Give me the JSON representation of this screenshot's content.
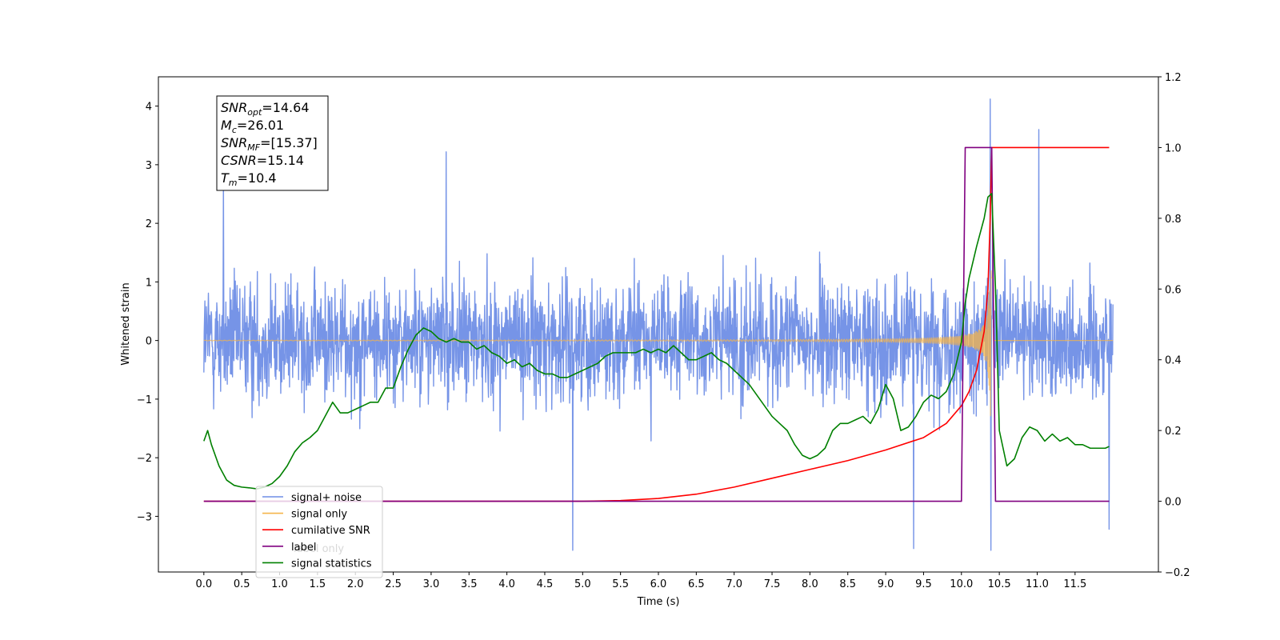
{
  "chart_data": {
    "type": "line",
    "xlabel": "Time (s)",
    "ylabel": "Whitened strain",
    "xlim": [
      -0.6,
      12.6
    ],
    "ylim_left": [
      -3.95,
      4.5
    ],
    "ylim_right": [
      -0.2,
      1.2
    ],
    "x_ticks": [
      0.0,
      0.5,
      1.0,
      1.5,
      2.0,
      2.5,
      3.0,
      3.5,
      4.0,
      4.5,
      5.0,
      5.5,
      6.0,
      6.5,
      7.0,
      7.5,
      8.0,
      8.5,
      9.0,
      9.5,
      10.0,
      10.5,
      11.0,
      11.5
    ],
    "x_tick_labels": [
      "0.0",
      "0.5",
      "1.0",
      "1.5",
      "2.0",
      "2.5",
      "3.0",
      "3.5",
      "4.0",
      "4.5",
      "5.0",
      "5.5",
      "6.0",
      "6.5",
      "7.0",
      "7.5",
      "8.0",
      "8.5",
      "9.0",
      "9.5",
      "10.0",
      "10.5",
      "11.0",
      "11.5"
    ],
    "y_left_ticks": [
      -3,
      -2,
      -1,
      0,
      1,
      2,
      3,
      4
    ],
    "y_left_tick_labels": [
      "−3",
      "−2",
      "−1",
      "0",
      "1",
      "2",
      "3",
      "4"
    ],
    "y_right_ticks": [
      -0.2,
      0.0,
      0.2,
      0.4,
      0.6,
      0.8,
      1.0,
      1.2
    ],
    "y_right_tick_labels": [
      "−0.2",
      "0.0",
      "0.2",
      "0.4",
      "0.6",
      "0.8",
      "1.0",
      "1.2"
    ],
    "grid": false,
    "legend_position": "lower-left",
    "series": [
      {
        "name": "signal+ noise",
        "axis": "left",
        "color": "#6f8ee6",
        "kind": "noise",
        "x_range": [
          0.0,
          12.0
        ],
        "envelope_typical": 1.3,
        "envelope_peak": [
          -3.6,
          4.12
        ],
        "spikes": [
          [
            0.26,
            2.75
          ],
          [
            3.2,
            3.22
          ],
          [
            4.87,
            -3.58
          ],
          [
            9.37,
            -3.55
          ],
          [
            10.38,
            4.12
          ],
          [
            10.39,
            -3.58
          ],
          [
            11.02,
            3.6
          ],
          [
            11.95,
            -3.22
          ]
        ]
      },
      {
        "name": "signal only",
        "axis": "left",
        "color": "#f5b44a",
        "kind": "chirp",
        "x_range": [
          0.0,
          12.0
        ],
        "merger_time": 10.4,
        "peak_amplitude": 1.3
      },
      {
        "name": "cumilative SNR",
        "axis": "right",
        "color": "#ff0000",
        "x": [
          0.0,
          5.0,
          5.5,
          6.0,
          6.5,
          7.0,
          7.5,
          8.0,
          8.5,
          9.0,
          9.5,
          9.8,
          10.0,
          10.1,
          10.2,
          10.3,
          10.35,
          10.38,
          10.4,
          11.95
        ],
        "y": [
          0.0,
          0.0,
          0.002,
          0.008,
          0.02,
          0.04,
          0.065,
          0.09,
          0.115,
          0.145,
          0.18,
          0.22,
          0.27,
          0.31,
          0.37,
          0.48,
          0.6,
          0.8,
          1.0,
          1.0
        ]
      },
      {
        "name": "label",
        "axis": "right",
        "color": "#800080",
        "x": [
          0.0,
          10.0,
          10.05,
          10.4,
          10.45,
          11.95
        ],
        "y": [
          0.0,
          0.0,
          1.0,
          1.0,
          0.0,
          0.0
        ]
      },
      {
        "name": "signal statistics",
        "axis": "right",
        "color": "#008000",
        "x": [
          0.0,
          0.05,
          0.1,
          0.2,
          0.3,
          0.4,
          0.5,
          0.6,
          0.7,
          0.8,
          0.9,
          1.0,
          1.1,
          1.2,
          1.3,
          1.4,
          1.5,
          1.6,
          1.7,
          1.8,
          1.9,
          2.0,
          2.1,
          2.2,
          2.3,
          2.4,
          2.5,
          2.6,
          2.7,
          2.8,
          2.9,
          3.0,
          3.1,
          3.2,
          3.3,
          3.4,
          3.5,
          3.6,
          3.7,
          3.8,
          3.9,
          4.0,
          4.1,
          4.2,
          4.3,
          4.4,
          4.5,
          4.6,
          4.7,
          4.8,
          4.9,
          5.0,
          5.1,
          5.2,
          5.3,
          5.4,
          5.5,
          5.6,
          5.7,
          5.8,
          5.9,
          6.0,
          6.1,
          6.2,
          6.3,
          6.4,
          6.5,
          6.6,
          6.7,
          6.8,
          6.9,
          7.0,
          7.1,
          7.2,
          7.3,
          7.4,
          7.5,
          7.6,
          7.7,
          7.8,
          7.9,
          8.0,
          8.1,
          8.2,
          8.3,
          8.4,
          8.5,
          8.6,
          8.7,
          8.8,
          8.9,
          9.0,
          9.1,
          9.2,
          9.3,
          9.4,
          9.5,
          9.6,
          9.7,
          9.8,
          9.9,
          10.0,
          10.05,
          10.1,
          10.2,
          10.3,
          10.35,
          10.4,
          10.45,
          10.5,
          10.6,
          10.7,
          10.8,
          10.9,
          11.0,
          11.1,
          11.2,
          11.3,
          11.4,
          11.5,
          11.6,
          11.7,
          11.8,
          11.9,
          11.95
        ],
        "y": [
          0.17,
          0.2,
          0.16,
          0.1,
          0.06,
          0.045,
          0.04,
          0.038,
          0.035,
          0.04,
          0.05,
          0.07,
          0.1,
          0.14,
          0.165,
          0.18,
          0.2,
          0.24,
          0.28,
          0.25,
          0.25,
          0.26,
          0.27,
          0.28,
          0.28,
          0.32,
          0.32,
          0.38,
          0.43,
          0.47,
          0.49,
          0.48,
          0.46,
          0.45,
          0.46,
          0.45,
          0.45,
          0.43,
          0.44,
          0.42,
          0.41,
          0.39,
          0.4,
          0.38,
          0.39,
          0.37,
          0.36,
          0.36,
          0.35,
          0.35,
          0.36,
          0.37,
          0.38,
          0.39,
          0.41,
          0.42,
          0.42,
          0.42,
          0.42,
          0.43,
          0.42,
          0.43,
          0.42,
          0.44,
          0.42,
          0.4,
          0.4,
          0.41,
          0.42,
          0.4,
          0.39,
          0.37,
          0.35,
          0.33,
          0.3,
          0.27,
          0.24,
          0.22,
          0.2,
          0.16,
          0.13,
          0.12,
          0.13,
          0.15,
          0.2,
          0.22,
          0.22,
          0.23,
          0.24,
          0.22,
          0.26,
          0.33,
          0.29,
          0.2,
          0.21,
          0.24,
          0.28,
          0.3,
          0.29,
          0.31,
          0.36,
          0.45,
          0.56,
          0.63,
          0.72,
          0.8,
          0.86,
          0.87,
          0.6,
          0.2,
          0.1,
          0.12,
          0.18,
          0.21,
          0.2,
          0.17,
          0.19,
          0.17,
          0.18,
          0.16,
          0.16,
          0.15,
          0.15,
          0.15,
          0.155
        ]
      }
    ],
    "legend": [
      {
        "label": "signal+ noise",
        "color": "#6f8ee6"
      },
      {
        "label": "signal only",
        "color": "#f5b44a"
      },
      {
        "label": "cumilative SNR",
        "color": "#ff0000"
      },
      {
        "label": "label",
        "color": "#800080"
      },
      {
        "label": "signal statistics",
        "color": "#008000"
      }
    ],
    "hidden_behind_legend": "label only",
    "annotation": [
      {
        "base": "SNR",
        "sub": "opt",
        "value": "=14.64"
      },
      {
        "base": "M",
        "sub": "c",
        "value": "=26.01"
      },
      {
        "base": "SNR",
        "sub": "MF",
        "value": "=[15.37]"
      },
      {
        "base": "CSNR",
        "sub": "",
        "value": "=15.14"
      },
      {
        "base": "T",
        "sub": "m",
        "value": "=10.4"
      }
    ]
  }
}
